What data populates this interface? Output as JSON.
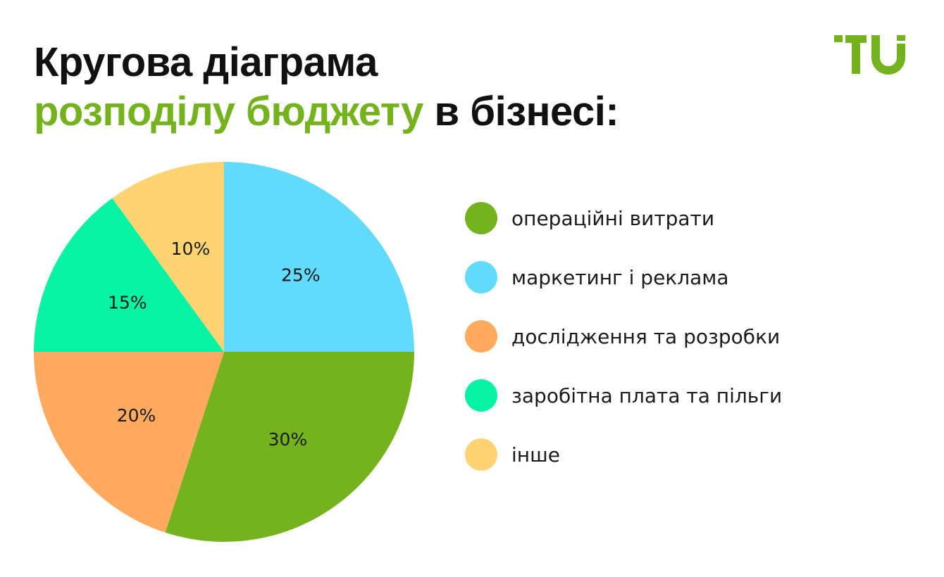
{
  "header": {
    "title_line1": "Кругова діаграма",
    "title_line2_accent": "розподілу бюджету",
    "title_line2_rest": " в бізнесі:",
    "accent_color": "#74b31d"
  },
  "logo": {
    "icon": "tu-logo-icon",
    "color": "#74b31d"
  },
  "chart_data": {
    "type": "pie",
    "title": "Кругова діаграма розподілу бюджету в бізнесі:",
    "unit": "%",
    "start_angle_deg": 0,
    "direction": "clockwise",
    "legend_position": "right",
    "slices": [
      {
        "label": "маркетинг і реклама",
        "value": 25,
        "value_label": "25%",
        "color": "#62dafb"
      },
      {
        "label": "операційні витрати",
        "value": 30,
        "value_label": "30%",
        "color": "#74b31d"
      },
      {
        "label": "дослідження та розробки",
        "value": 20,
        "value_label": "20%",
        "color": "#ffaa5e"
      },
      {
        "label": "заробітна плата та пільги",
        "value": 15,
        "value_label": "15%",
        "color": "#07f2a3"
      },
      {
        "label": "інше",
        "value": 10,
        "value_label": "10%",
        "color": "#fdd471"
      }
    ],
    "legend": [
      {
        "label": "операційні витрати",
        "color": "#74b31d"
      },
      {
        "label": "маркетинг і реклама",
        "color": "#62dafb"
      },
      {
        "label": "дослідження та розробки",
        "color": "#ffaa5e"
      },
      {
        "label": "заробітна плата та пільги",
        "color": "#07f2a3"
      },
      {
        "label": "інше",
        "color": "#fdd471"
      }
    ]
  }
}
